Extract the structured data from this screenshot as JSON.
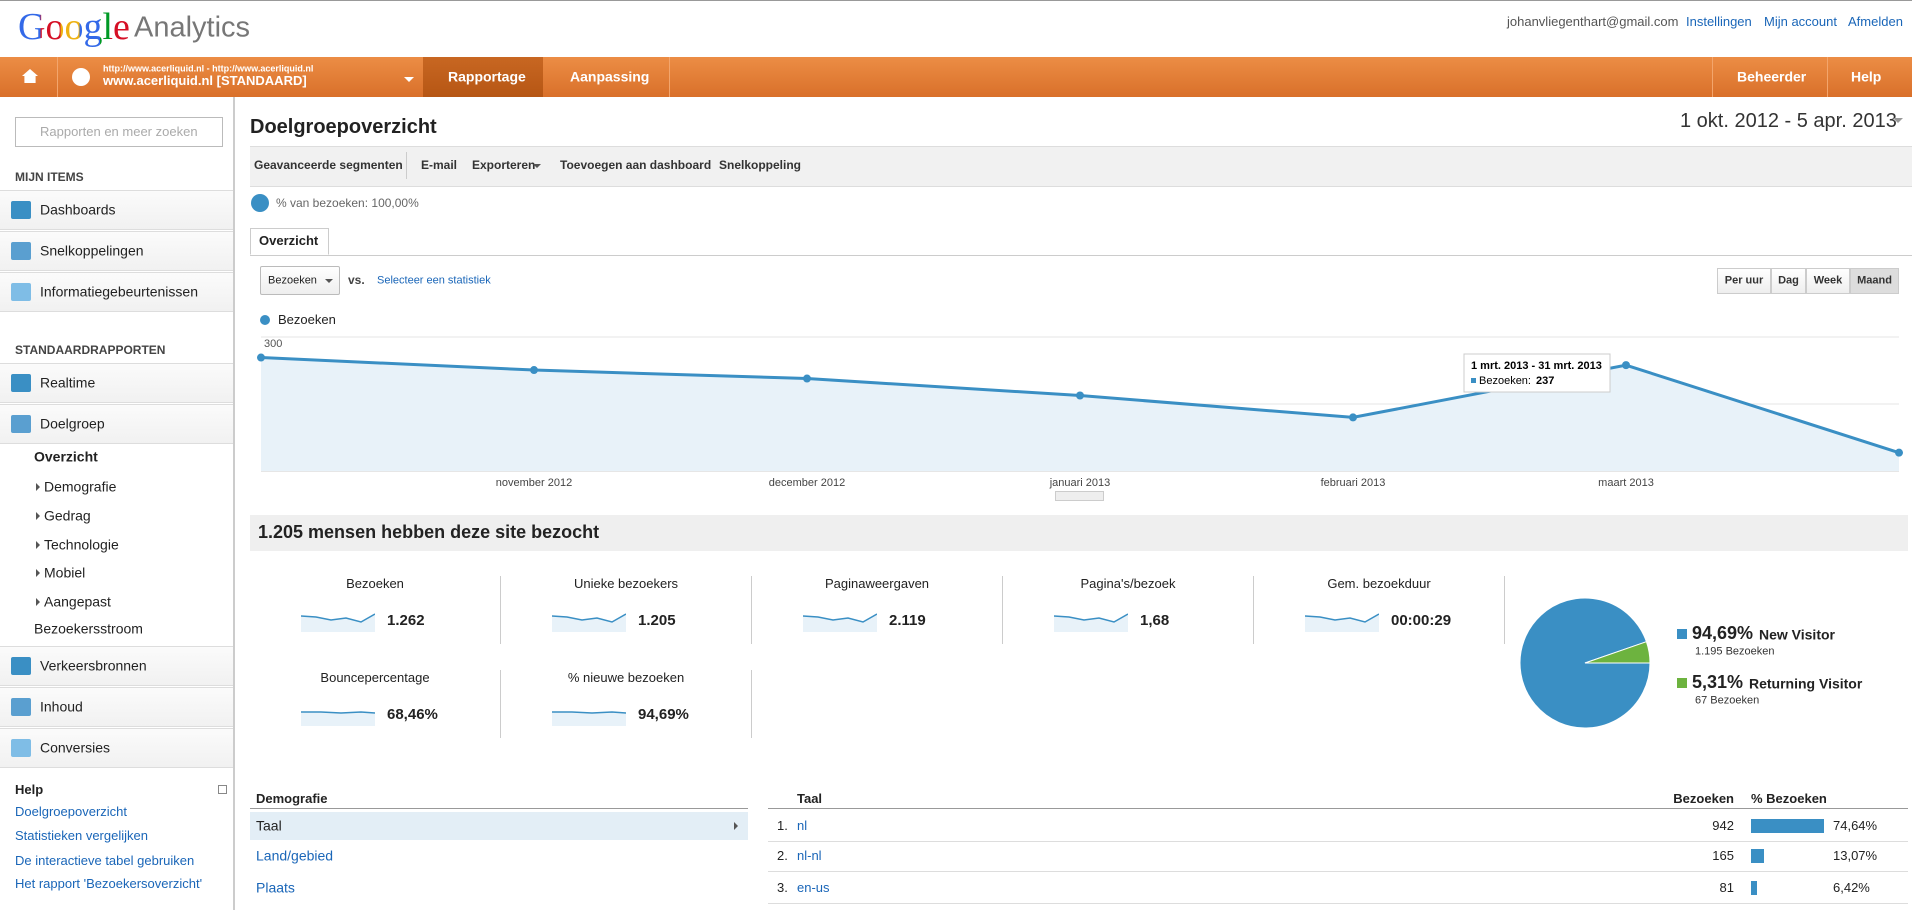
{
  "header": {
    "logo": "Google",
    "product": "Analytics",
    "email": "johanvliegenthart@gmail.com",
    "links": [
      "Instellingen",
      "Mijn account",
      "Afmelden"
    ]
  },
  "nav": {
    "site_url": "http://www.acerliquid.nl - http://www.acerliquid.nl",
    "site_name": "www.acerliquid.nl [STANDAARD]",
    "tabs": [
      "Rapportage",
      "Aanpassing"
    ],
    "right": [
      "Beheerder",
      "Help"
    ]
  },
  "sidebar": {
    "search_placeholder": "Rapporten en meer zoeken",
    "my_items": {
      "title": "MIJN ITEMS",
      "items": [
        "Dashboards",
        "Snelkoppelingen",
        "Informatiegebeurtenissen"
      ]
    },
    "standard": {
      "title": "STANDAARDRAPPORTEN",
      "items": [
        "Realtime",
        "Doelgroep"
      ],
      "subitems": [
        "Overzicht",
        "Demografie",
        "Gedrag",
        "Technologie",
        "Mobiel",
        "Aangepast",
        "Bezoekersstroom"
      ],
      "more": [
        "Verkeersbronnen",
        "Inhoud",
        "Conversies"
      ]
    },
    "help": {
      "title": "Help",
      "links": [
        "Doelgroepoverzicht",
        "Statistieken vergelijken",
        "De interactieve tabel gebruiken",
        "Het rapport 'Bezoekersoverzicht'"
      ]
    }
  },
  "main": {
    "title": "Doelgroepoverzicht",
    "date_range": "1 okt. 2012 - 5 apr. 2013",
    "toolbar": [
      "Geavanceerde segmenten",
      "E-mail",
      "Exporteren",
      "Toevoegen aan dashboard",
      "Snelkoppeling"
    ],
    "segment": "% van bezoeken: 100,00%",
    "tab": "Overzicht",
    "metric": "Bezoeken",
    "vs": "vs.",
    "select_metric": "Selecteer een statistiek",
    "granularity": [
      "Per uur",
      "Dag",
      "Week",
      "Maand"
    ]
  },
  "chart_data": [
    {
      "type": "line",
      "series": [
        {
          "name": "Bezoeken",
          "color": "#3a8fc4",
          "values": [
            254,
            226,
            207,
            169,
            120,
            237,
            41
          ]
        }
      ],
      "categories": [
        null,
        "november 2012",
        "december 2012",
        "januari 2013",
        "februari 2013",
        "maart 2013",
        null
      ],
      "ylim": [
        0,
        300
      ],
      "yticks": [
        150,
        300
      ],
      "grid": true,
      "tooltip": {
        "title": "1 mrt. 2013 - 31 mrt. 2013",
        "label": "Bezoeken:"
      }
    },
    {
      "type": "pie",
      "categories": [
        "New Visitor",
        "Returning Visitor"
      ],
      "values": [
        94.69,
        5.31
      ],
      "value_labels": [
        "94,69%",
        "5,31%"
      ],
      "colors": [
        "#3a8fc4",
        "#6db33f"
      ],
      "sublabels": [
        "1.195 Bezoeken",
        "67 Bezoeken"
      ]
    }
  ],
  "summary": {
    "title": "1.205 mensen hebben deze site bezocht",
    "metrics": [
      {
        "name": "Bezoeken",
        "value": "1.262"
      },
      {
        "name": "Unieke bezoekers",
        "value": "1.205"
      },
      {
        "name": "Paginaweergaven",
        "value": "2.119"
      },
      {
        "name": "Pagina's/bezoek",
        "value": "1,68"
      },
      {
        "name": "Gem. bezoekduur",
        "value": "00:00:29"
      },
      {
        "name": "Bouncepercentage",
        "value": "68,46%"
      },
      {
        "name": "% nieuwe bezoeken",
        "value": "94,69%"
      }
    ]
  },
  "tables": {
    "left": {
      "header": "Demografie",
      "items": [
        "Taal",
        "Land/gebied",
        "Plaats"
      ]
    },
    "right": {
      "columns": [
        "Taal",
        "Bezoeken",
        "% Bezoeken"
      ],
      "rows": [
        {
          "rank": "1.",
          "name": "nl",
          "visits": 942,
          "share": 74.64,
          "share_label": "74,64%"
        },
        {
          "rank": "2.",
          "name": "nl-nl",
          "visits": 165,
          "share": 13.07,
          "share_label": "13,07%"
        },
        {
          "rank": "3.",
          "name": "en-us",
          "visits": 81,
          "share": 6.42,
          "share_label": "6,42%"
        }
      ]
    }
  }
}
